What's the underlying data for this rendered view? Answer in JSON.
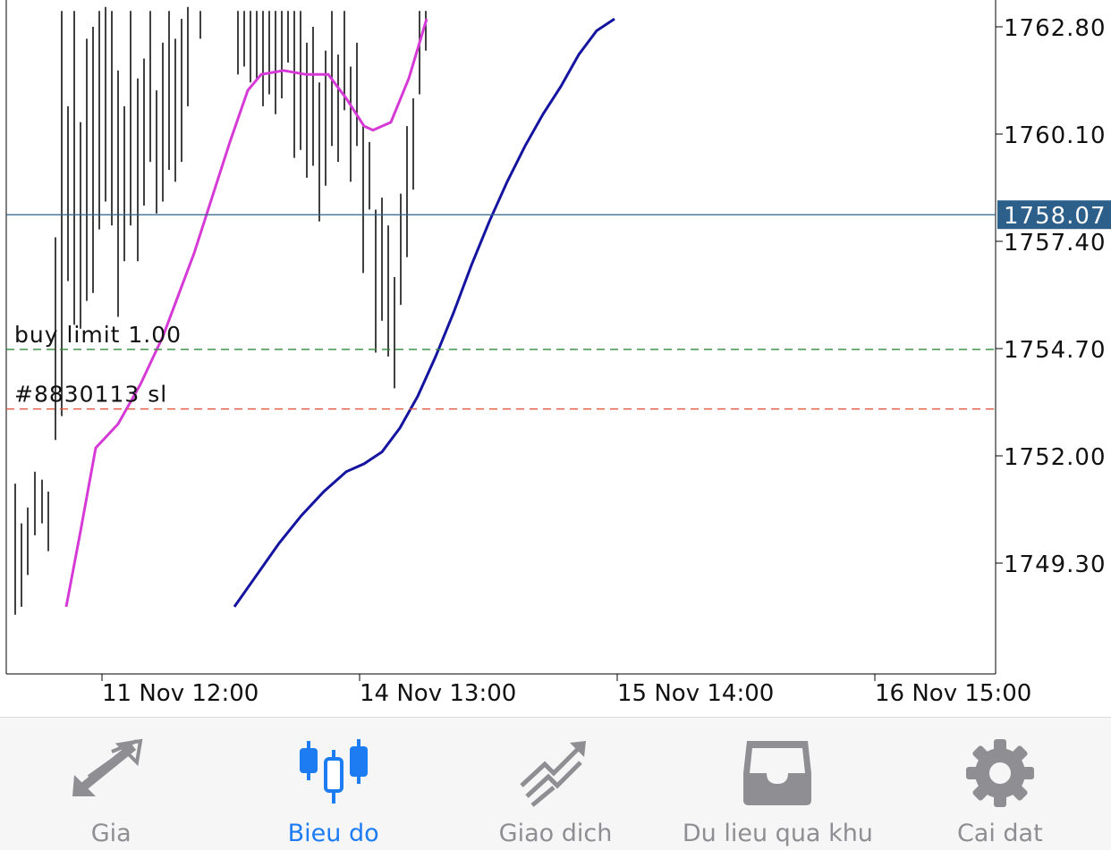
{
  "chart_data": {
    "type": "line",
    "y_axis": {
      "ticks": [
        "1762.80",
        "1760.10",
        "1757.40",
        "1754.70",
        "1752.00",
        "1749.30"
      ],
      "tick_values": [
        1762.8,
        1760.1,
        1757.4,
        1754.7,
        1752.0,
        1749.3
      ]
    },
    "x_axis": {
      "ticks": [
        "11 Nov 12:00",
        "14 Nov 13:00",
        "15 Nov 14:00",
        "16 Nov 15:00"
      ]
    },
    "current_price": {
      "value": 1758.07,
      "label": "1758.07",
      "color": "#2c5f8a"
    },
    "price_lines": [
      {
        "label": "buy limit 1.00",
        "value": 1754.68,
        "color": "#2e8b3a"
      },
      {
        "label": "#8830113 sl",
        "value": 1753.18,
        "color": "#e2553b"
      }
    ],
    "series": [
      {
        "color": "#d63ad6",
        "points": [
          [
            0.67,
            1748.2
          ],
          [
            0.83,
            1750.1
          ],
          [
            1.0,
            1752.2
          ],
          [
            1.25,
            1752.8
          ],
          [
            1.5,
            1753.8
          ],
          [
            1.75,
            1755.0
          ],
          [
            1.9,
            1755.9
          ],
          [
            2.1,
            1757.1
          ],
          [
            2.3,
            1758.5
          ],
          [
            2.5,
            1759.9
          ],
          [
            2.7,
            1761.2
          ],
          [
            2.85,
            1761.6
          ],
          [
            3.1,
            1761.7
          ],
          [
            3.35,
            1761.6
          ],
          [
            3.6,
            1761.6
          ],
          [
            3.8,
            1761.0
          ],
          [
            4.0,
            1760.3
          ],
          [
            4.1,
            1760.2
          ],
          [
            4.3,
            1760.4
          ],
          [
            4.5,
            1761.5
          ],
          [
            4.7,
            1763.0
          ]
        ]
      },
      {
        "color": "#1414a0",
        "points": [
          [
            2.55,
            1748.2
          ],
          [
            2.8,
            1749.0
          ],
          [
            3.05,
            1749.8
          ],
          [
            3.3,
            1750.5
          ],
          [
            3.55,
            1751.1
          ],
          [
            3.8,
            1751.6
          ],
          [
            4.0,
            1751.8
          ],
          [
            4.2,
            1752.1
          ],
          [
            4.4,
            1752.7
          ],
          [
            4.6,
            1753.5
          ],
          [
            4.8,
            1754.5
          ],
          [
            5.0,
            1755.6
          ],
          [
            5.2,
            1756.8
          ],
          [
            5.4,
            1757.9
          ],
          [
            5.6,
            1758.9
          ],
          [
            5.8,
            1759.8
          ],
          [
            6.0,
            1760.6
          ],
          [
            6.2,
            1761.3
          ],
          [
            6.4,
            1762.1
          ],
          [
            6.6,
            1762.7
          ],
          [
            6.8,
            1763.0
          ]
        ]
      }
    ],
    "bars": [
      [
        0.1,
        1748.0,
        1751.3
      ],
      [
        0.17,
        1748.2,
        1750.3
      ],
      [
        0.24,
        1749.0,
        1750.7
      ],
      [
        0.32,
        1750.0,
        1751.6
      ],
      [
        0.4,
        1750.3,
        1751.4
      ],
      [
        0.47,
        1749.6,
        1751.1
      ],
      [
        0.55,
        1752.4,
        1757.5
      ],
      [
        0.62,
        1753.0,
        1763.2
      ],
      [
        0.69,
        1756.4,
        1760.8
      ],
      [
        0.76,
        1755.3,
        1763.2
      ],
      [
        0.83,
        1755.2,
        1760.4
      ],
      [
        0.9,
        1755.9,
        1762.5
      ],
      [
        0.97,
        1756.1,
        1762.8
      ],
      [
        1.04,
        1757.7,
        1763.2
      ],
      [
        1.11,
        1758.4,
        1763.3
      ],
      [
        1.18,
        1757.8,
        1763.2
      ],
      [
        1.25,
        1755.5,
        1761.7
      ],
      [
        1.32,
        1756.9,
        1760.8
      ],
      [
        1.39,
        1757.8,
        1763.2
      ],
      [
        1.47,
        1756.9,
        1761.5
      ],
      [
        1.54,
        1758.3,
        1762.0
      ],
      [
        1.61,
        1759.4,
        1763.2
      ],
      [
        1.68,
        1758.1,
        1761.2
      ],
      [
        1.75,
        1758.4,
        1762.4
      ],
      [
        1.82,
        1759.2,
        1763.2
      ],
      [
        1.89,
        1758.9,
        1762.5
      ],
      [
        1.96,
        1759.4,
        1763.0
      ],
      [
        2.03,
        1760.8,
        1763.3
      ],
      [
        2.17,
        1762.5,
        1763.2
      ],
      [
        2.59,
        1761.6,
        1763.2
      ],
      [
        2.66,
        1761.8,
        1763.2
      ],
      [
        2.73,
        1761.4,
        1763.2
      ],
      [
        2.8,
        1761.5,
        1763.2
      ],
      [
        2.87,
        1760.8,
        1763.2
      ],
      [
        2.94,
        1761.1,
        1763.2
      ],
      [
        3.01,
        1760.6,
        1763.2
      ],
      [
        3.08,
        1761.0,
        1763.2
      ],
      [
        3.15,
        1761.9,
        1763.2
      ],
      [
        3.22,
        1759.5,
        1763.2
      ],
      [
        3.29,
        1759.7,
        1763.2
      ],
      [
        3.36,
        1759.0,
        1762.4
      ],
      [
        3.43,
        1759.3,
        1762.8
      ],
      [
        3.5,
        1757.9,
        1761.4
      ],
      [
        3.57,
        1758.8,
        1762.2
      ],
      [
        3.64,
        1759.8,
        1763.2
      ],
      [
        3.71,
        1759.4,
        1762.1
      ],
      [
        3.78,
        1760.7,
        1763.2
      ],
      [
        3.85,
        1758.9,
        1761.8
      ],
      [
        3.92,
        1759.8,
        1762.4
      ],
      [
        3.99,
        1756.6,
        1760.3
      ],
      [
        4.06,
        1758.2,
        1759.9
      ],
      [
        4.13,
        1754.6,
        1758.2
      ],
      [
        4.2,
        1755.4,
        1758.5
      ],
      [
        4.27,
        1754.5,
        1757.8
      ],
      [
        4.34,
        1753.7,
        1756.5
      ],
      [
        4.41,
        1755.8,
        1758.6
      ],
      [
        4.48,
        1757.0,
        1760.3
      ],
      [
        4.55,
        1758.7,
        1761.0
      ],
      [
        4.62,
        1761.1,
        1763.2
      ],
      [
        4.69,
        1762.2,
        1763.2
      ]
    ]
  },
  "tabs": [
    {
      "label": "Gia",
      "icon": "quotes-arrows-icon",
      "active": false
    },
    {
      "label": "Bieu do",
      "icon": "candlestick-chart-icon",
      "active": true
    },
    {
      "label": "Giao dich",
      "icon": "trade-trend-icon",
      "active": false
    },
    {
      "label": "Du lieu qua khu",
      "icon": "history-inbox-icon",
      "active": false
    },
    {
      "label": "Cai dat",
      "icon": "gear-icon",
      "active": false
    }
  ],
  "colors": {
    "active": "#1d7cf2",
    "inactive": "#8e8e93"
  }
}
